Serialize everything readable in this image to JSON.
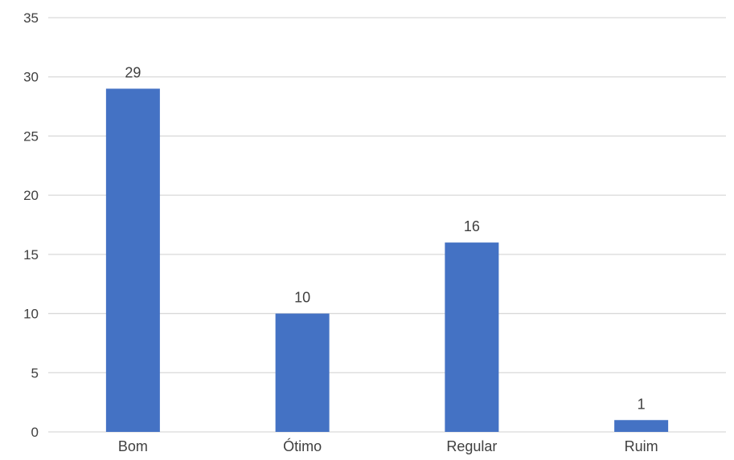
{
  "chart_data": {
    "type": "bar",
    "title": "",
    "xlabel": "",
    "ylabel": "",
    "categories": [
      "Bom",
      "Ótimo",
      "Regular",
      "Ruim"
    ],
    "values": [
      29,
      10,
      16,
      1
    ],
    "data_labels": [
      "29",
      "10",
      "16",
      "1"
    ],
    "ylim": [
      0,
      35
    ],
    "y_ticks": [
      0,
      5,
      10,
      15,
      20,
      25,
      30,
      35
    ],
    "y_tick_labels": [
      "0",
      "5",
      "10",
      "15",
      "20",
      "25",
      "30",
      "35"
    ],
    "grid": true,
    "legend": "none",
    "bar_color": "#4472C4",
    "grid_color": "#D9D9D9"
  }
}
